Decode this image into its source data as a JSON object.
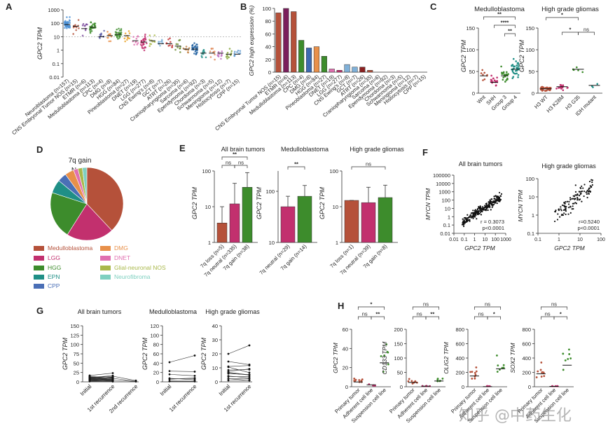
{
  "watermark": "知乎 @中药生化",
  "colors": {
    "medullo": "#b5513a",
    "lgg": "#c2306e",
    "hgg": "#3d8c2c",
    "epn": "#1f8f86",
    "cpp": "#4a6fb6",
    "dmg": "#e8904a",
    "dnet": "#e070b0",
    "gnnos": "#a9b84a",
    "neurofibroma": "#7fd0c0"
  },
  "panels": [
    {
      "id": "A",
      "ylabel": "GPC2 TPM",
      "categories": [
        "Neuroblastoma (n=157)",
        "CNS Embryonal Tumor NOS (n=15)",
        "ETMR (n=6)",
        "Medulloblastoma (n=113)",
        "CPC (n=4)",
        "DMG (n=8)",
        "HGG (n=84)",
        "Pineoblastoma (n=27)",
        "DNET (n=19)",
        "LGG (n=277)",
        "CNS Ewing's (n=8)",
        "GCT (n=7)",
        "ATRT (n=26)",
        "Craniopharyngioma (n=35)",
        "Sarcoma (n=6)",
        "Ependymoma (n=92)",
        "Chordoma (n=3)",
        "Schwannoma (n=5)",
        "Meningioma (n=12)",
        "Histiocytosis (n=7)",
        "CPP (n=15)"
      ],
      "medians": [
        80,
        60,
        40,
        50,
        10,
        12,
        15,
        12,
        5,
        4,
        5,
        3,
        3,
        2,
        1.2,
        1.2,
        0.6,
        0.6,
        0.6,
        0.5,
        0.5
      ],
      "ticks": [
        "0.01",
        "0.1",
        "1",
        "10",
        "100",
        "1000"
      ]
    },
    {
      "id": "B",
      "ylabel": "GPC2 high expression (%)",
      "categories": [
        "CNS Embryonal Tumor NOS (n=15)",
        "ETMR (n=6)",
        "Medulloblastoma (n=113)",
        "CPC (n=4)",
        "DMG (n=8)",
        "HGG (n=84)",
        "Pineoblastoma (n=27)",
        "DNET (n=19)",
        "LGG (n=277)",
        "CNS Ewing's (n=8)",
        "GCT (n=7)",
        "ATRT (n=26)",
        "Craniopharyngioma (n=35)",
        "Sarcoma (n=6)",
        "Ependymoma (n=92)",
        "Chordoma (n=3)",
        "Schwannoma (n=5)",
        "Meningioma (n=12)",
        "Histiocytosis (n=7)",
        "CPP (n=15)"
      ],
      "values": [
        93,
        100,
        95,
        50,
        38,
        40,
        25,
        5,
        3,
        12,
        8,
        8,
        3,
        0,
        0,
        0,
        0,
        0,
        0,
        0
      ],
      "ticks": [
        "0",
        "20",
        "40",
        "60",
        "80",
        "100"
      ]
    },
    {
      "id": "C",
      "ylabel": "GPC2 TPM",
      "sub1": {
        "title": "Medulloblastoma",
        "categories": [
          "Wnt",
          "SHH",
          "Group 3",
          "Group 4"
        ],
        "medians": [
          40,
          25,
          40,
          55
        ],
        "ticks": [
          "0",
          "50",
          "100",
          "150"
        ],
        "sig": [
          "**",
          "****",
          "**"
        ]
      },
      "sub2": {
        "title": "High grade gliomas",
        "categories": [
          "H3 WT",
          "H3 K28M",
          "H3 G35",
          "IDH mutant"
        ],
        "medians": [
          10,
          15,
          55,
          18
        ],
        "ticks": [
          "0",
          "50",
          "100",
          "150"
        ],
        "sig": [
          "*",
          "*",
          "ns"
        ]
      }
    },
    {
      "id": "D",
      "title": "7q gain",
      "subtitle": "N=38",
      "slices": [
        {
          "name": "Medulloblastoma",
          "value": 38
        },
        {
          "name": "LGG",
          "value": 21
        },
        {
          "name": "HGG",
          "value": 21
        },
        {
          "name": "EPN",
          "value": 6
        },
        {
          "name": "CPP",
          "value": 4
        },
        {
          "name": "DMG",
          "value": 4
        },
        {
          "name": "DNET",
          "value": 2
        },
        {
          "name": "Glial-neuronal NOS",
          "value": 2
        },
        {
          "name": "Neurofibroma",
          "value": 2
        }
      ]
    },
    {
      "id": "E",
      "ylabel": "GPC2 TPM",
      "ticks": [
        "1",
        "10",
        "100"
      ],
      "sub1": {
        "title": "All brain tumors",
        "categories": [
          "7q loss (n=5)",
          "7q neutral (n=335)",
          "7q gain (n=38)"
        ],
        "values": [
          3.5,
          12,
          35
        ],
        "sig": [
          "ns",
          "**",
          "ns"
        ]
      },
      "sub2": {
        "title": "Medulloblastoma",
        "categories": [
          "7q neutral (n=29)",
          "7q gain (n=14)"
        ],
        "values": [
          50,
          80
        ],
        "sig": [
          "**"
        ]
      },
      "sub3": {
        "title": "High grade gliomas",
        "categories": [
          "7q loss (n=1)",
          "7q neutral (n=39)",
          "7q gain (n=8)"
        ],
        "values": [
          15,
          13,
          18
        ],
        "sig": [
          "ns"
        ]
      }
    },
    {
      "id": "F",
      "sub1": {
        "title": "All brain tumors",
        "xlabel": "GPC2 TPM",
        "ylabel": "MYCN TPM",
        "r": "r = 0.3073",
        "p": "p<0.0001",
        "xticks": [
          "0.01",
          "0.1",
          "1",
          "10",
          "100",
          "1000"
        ],
        "yticks": [
          "0.01",
          "0.1",
          "1",
          "10",
          "100",
          "1000",
          "10000",
          "100000"
        ]
      },
      "sub2": {
        "title": "High grade gliomas",
        "xlabel": "GPC2 TPM",
        "ylabel": "MYCN TPM",
        "r": "r=0.5240",
        "p": "p<0.0001",
        "xticks": [
          "0.1",
          "1",
          "10",
          "100"
        ],
        "yticks": [
          "0.1",
          "1",
          "10",
          "100"
        ]
      }
    },
    {
      "id": "G",
      "ylabel": "GPC2 TPM",
      "sub1": {
        "title": "All brain tumors",
        "categories": [
          "Initial",
          "1st recurrence",
          "2nd recurrence"
        ],
        "ticks": [
          "0",
          "25",
          "50",
          "75",
          "100",
          "125",
          "150"
        ]
      },
      "sub2": {
        "title": "Medulloblastoma",
        "categories": [
          "Initial",
          "1st recurrence"
        ],
        "ticks": [
          "0",
          "20",
          "40",
          "60",
          "80",
          "100",
          "120"
        ]
      },
      "sub3": {
        "title": "High grade gliomas",
        "categories": [
          "Initial",
          "1st recurrence"
        ],
        "ticks": [
          "0",
          "10",
          "20",
          "30",
          "40"
        ]
      }
    },
    {
      "id": "H",
      "categories": [
        "Primary tumor",
        "Adherent cell line",
        "Suspension cell line"
      ],
      "sub1": {
        "ylabel": "GPC2 TPM",
        "ticks": [
          "0",
          "20",
          "40",
          "60"
        ],
        "medians": [
          5,
          2,
          25
        ],
        "sig": [
          "*",
          "ns",
          "**"
        ]
      },
      "sub2": {
        "ylabel": "CD133 TPM",
        "ticks": [
          "0",
          "50",
          "100",
          "150",
          "200"
        ],
        "medians": [
          15,
          2,
          20
        ],
        "sig": [
          "ns",
          "ns",
          "**"
        ]
      },
      "sub3": {
        "ylabel": "OLIG2 TPM",
        "ticks": [
          "0",
          "200",
          "400",
          "600",
          "800"
        ],
        "medians": [
          150,
          2,
          250
        ],
        "sig": [
          "ns",
          "ns",
          "*"
        ]
      },
      "sub4": {
        "ylabel": "SOX2 TPM",
        "ticks": [
          "0",
          "200",
          "400",
          "600",
          "800"
        ],
        "medians": [
          180,
          5,
          300
        ],
        "sig": [
          "ns",
          "ns",
          "*"
        ]
      }
    }
  ],
  "chart_data": [
    {
      "type": "scatter",
      "panel": "A",
      "title": "",
      "ylabel": "GPC2 TPM",
      "categories": [
        "Neuroblastoma",
        "CNS Embryonal Tumor NOS",
        "ETMR",
        "Medulloblastoma",
        "CPC",
        "DMG",
        "HGG",
        "Pineoblastoma",
        "DNET",
        "LGG",
        "CNS Ewing's",
        "GCT",
        "ATRT",
        "Craniopharyngioma",
        "Sarcoma",
        "Ependymoma",
        "Chordoma",
        "Schwannoma",
        "Meningioma",
        "Histiocytosis",
        "CPP"
      ],
      "medians": [
        80,
        60,
        40,
        50,
        10,
        12,
        15,
        12,
        5,
        4,
        5,
        3,
        3,
        2,
        1.2,
        1.2,
        0.6,
        0.6,
        0.6,
        0.5,
        0.5
      ],
      "ylim": [
        0.01,
        1000
      ],
      "yscale": "log"
    },
    {
      "type": "bar",
      "panel": "B",
      "title": "",
      "ylabel": "GPC2 high expression (%)",
      "categories": [
        "CNS Embryonal Tumor NOS",
        "ETMR",
        "Medulloblastoma",
        "CPC",
        "DMG",
        "HGG",
        "Pineoblastoma",
        "DNET",
        "LGG",
        "CNS Ewing's",
        "GCT",
        "ATRT",
        "Craniopharyngioma",
        "Sarcoma",
        "Ependymoma",
        "Chordoma",
        "Schwannoma",
        "Meningioma",
        "Histiocytosis",
        "CPP"
      ],
      "values": [
        93,
        100,
        95,
        50,
        38,
        40,
        25,
        5,
        3,
        12,
        8,
        8,
        3,
        0,
        0,
        0,
        0,
        0,
        0,
        0
      ],
      "ylim": [
        0,
        100
      ]
    },
    {
      "type": "pie",
      "panel": "D",
      "title": "7q gain",
      "categories": [
        "Medulloblastoma",
        "LGG",
        "HGG",
        "EPN",
        "CPP",
        "DMG",
        "DNET",
        "Glial-neuronal NOS",
        "Neurofibroma"
      ],
      "values": [
        38,
        21,
        21,
        6,
        4,
        4,
        2,
        2,
        2
      ]
    },
    {
      "type": "bar",
      "panel": "E",
      "ylabel": "GPC2 TPM",
      "yscale": "log",
      "ylim": [
        1,
        100
      ],
      "series": [
        {
          "name": "All brain tumors",
          "values": [
            3.5,
            12,
            35
          ]
        },
        {
          "name": "Medulloblastoma",
          "values": [
            50,
            80
          ]
        },
        {
          "name": "High grade gliomas",
          "values": [
            15,
            13,
            18
          ]
        }
      ]
    }
  ]
}
